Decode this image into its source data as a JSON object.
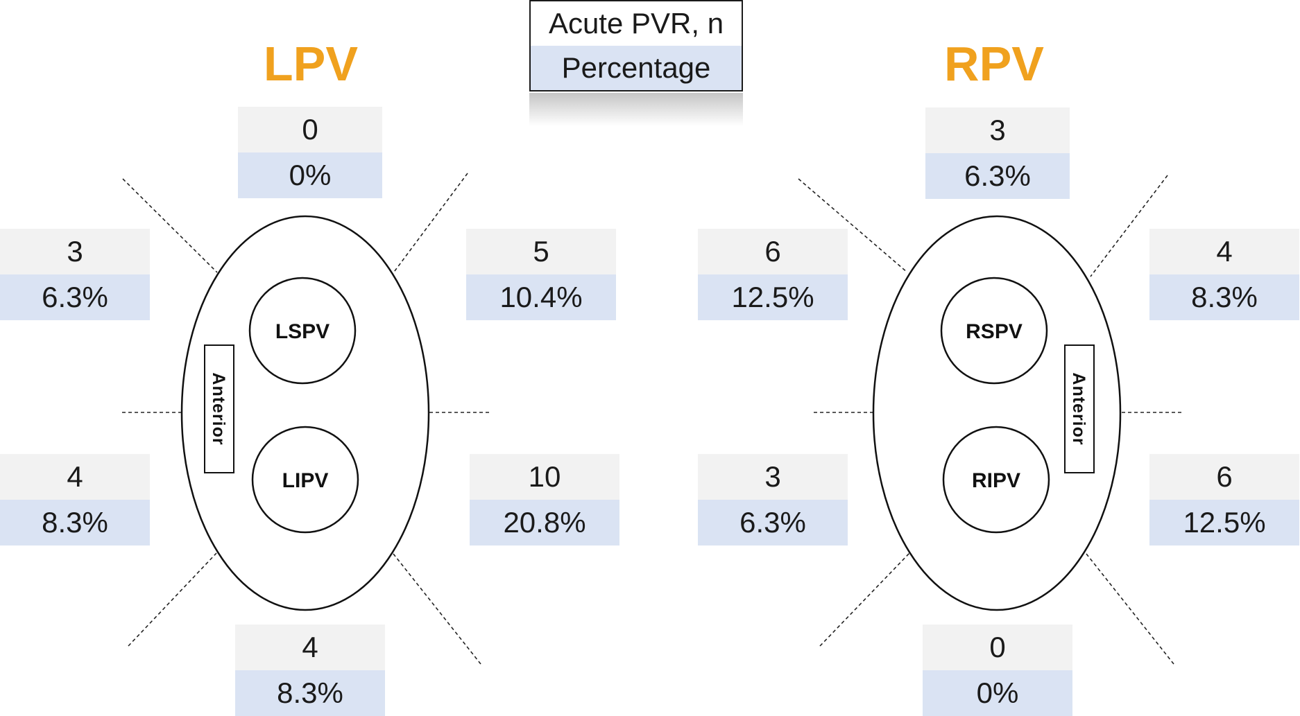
{
  "legend": {
    "row1": "Acute PVR, n",
    "row2": "Percentage"
  },
  "left": {
    "title": "LPV",
    "veins": {
      "superior": "LSPV",
      "inferior": "LIPV"
    },
    "anterior_label": "Anterior",
    "segments": {
      "top": {
        "n": "0",
        "pct": "0%"
      },
      "upper_left": {
        "n": "3",
        "pct": "6.3%"
      },
      "upper_right": {
        "n": "5",
        "pct": "10.4%"
      },
      "lower_left": {
        "n": "4",
        "pct": "8.3%"
      },
      "lower_right": {
        "n": "10",
        "pct": "20.8%"
      },
      "bottom": {
        "n": "4",
        "pct": "8.3%"
      }
    }
  },
  "right": {
    "title": "RPV",
    "veins": {
      "superior": "RSPV",
      "inferior": "RIPV"
    },
    "anterior_label": "Anterior",
    "segments": {
      "top": {
        "n": "3",
        "pct": "6.3%"
      },
      "upper_left": {
        "n": "6",
        "pct": "12.5%"
      },
      "upper_right": {
        "n": "4",
        "pct": "8.3%"
      },
      "lower_left": {
        "n": "3",
        "pct": "6.3%"
      },
      "lower_right": {
        "n": "6",
        "pct": "12.5%"
      },
      "bottom": {
        "n": "0",
        "pct": "0%"
      }
    }
  },
  "colors": {
    "title": "#f0a11e",
    "count_bg": "#f2f2f2",
    "percent_bg": "#dae3f3"
  }
}
